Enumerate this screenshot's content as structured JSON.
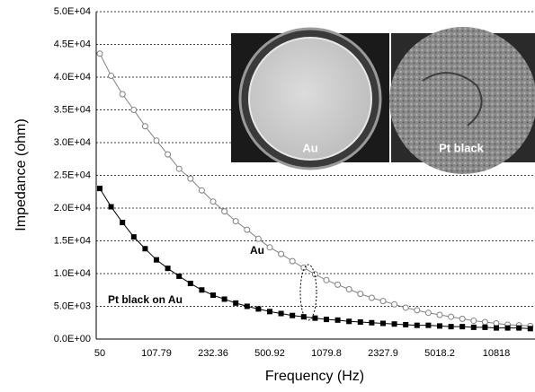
{
  "chart_data": {
    "type": "line",
    "x_label": "Frequency (Hz)",
    "y_label": "Impedance (ohm)",
    "categories": [
      "50",
      null,
      null,
      null,
      null,
      "107.79",
      null,
      null,
      null,
      null,
      "232.36",
      null,
      null,
      null,
      null,
      "500.92",
      null,
      null,
      null,
      null,
      "1079.8",
      null,
      null,
      null,
      null,
      "2327.9",
      null,
      null,
      null,
      null,
      "5018.2",
      null,
      null,
      null,
      null,
      "10818",
      null,
      null,
      null
    ],
    "series": [
      {
        "name": "Au",
        "color": "#808080",
        "marker": "circle",
        "values": [
          43600,
          40200,
          37400,
          35000,
          32500,
          30300,
          28200,
          26000,
          24500,
          22700,
          21000,
          19500,
          18000,
          16700,
          15300,
          14000,
          13000,
          11900,
          10900,
          9900,
          9000,
          8300,
          7600,
          6900,
          6300,
          5800,
          5300,
          4800,
          4400,
          4000,
          3700,
          3400,
          3100,
          2800,
          2600,
          2400,
          2200,
          2100,
          2000
        ]
      },
      {
        "name": "Pt black on Au",
        "color": "#000000",
        "marker": "square",
        "values": [
          23000,
          20200,
          17800,
          15600,
          13800,
          12100,
          10800,
          9600,
          8500,
          7500,
          6700,
          6100,
          5500,
          5000,
          4600,
          4200,
          3900,
          3600,
          3400,
          3200,
          3000,
          2900,
          2700,
          2600,
          2500,
          2400,
          2300,
          2200,
          2100,
          2100,
          2000,
          1900,
          1900,
          1800,
          1800,
          1700,
          1700,
          1700,
          1600
        ]
      }
    ],
    "ylim": [
      0,
      50000
    ],
    "yticks": [
      {
        "value": 0,
        "label": "0.0E+00"
      },
      {
        "value": 5000,
        "label": "5.0E+03"
      },
      {
        "value": 10000,
        "label": "1.0E+04"
      },
      {
        "value": 15000,
        "label": "1.5E+04"
      },
      {
        "value": 20000,
        "label": "2.0E+04"
      },
      {
        "value": 25000,
        "label": "2.5E+04"
      },
      {
        "value": 30000,
        "label": "3.0E+04"
      },
      {
        "value": 35000,
        "label": "3.5E+04"
      },
      {
        "value": 40000,
        "label": "4.0E+04"
      },
      {
        "value": 45000,
        "label": "4.5E+04"
      },
      {
        "value": 50000,
        "label": "5.0E+04"
      }
    ],
    "grid": true,
    "inset_labels": [
      "Au",
      "Pt black"
    ]
  }
}
